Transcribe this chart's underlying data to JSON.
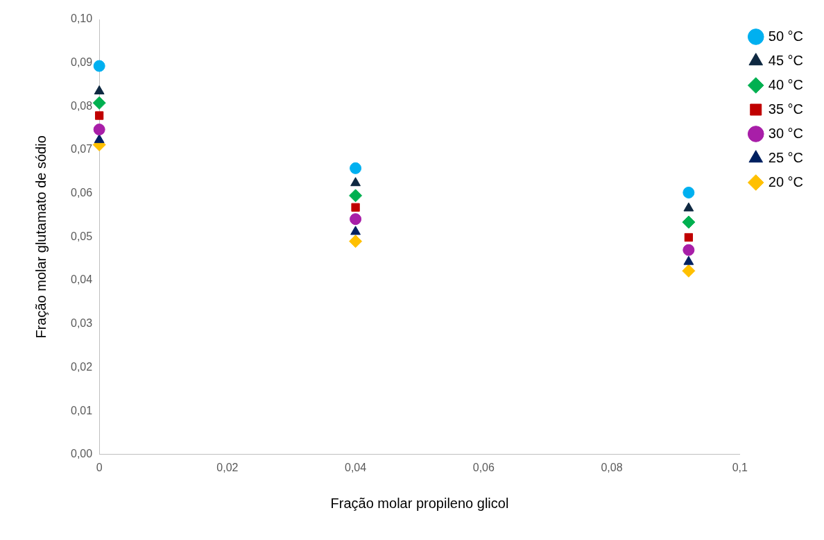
{
  "chart_data": {
    "type": "scatter",
    "xlabel": "Fração molar propileno glicol",
    "ylabel": "Fração molar glutamato de sódio",
    "x": [
      0,
      0.04,
      0.092
    ],
    "series": [
      {
        "name": "50 °C",
        "color": "#00b0f0",
        "marker": "circle",
        "values": [
          0.0893,
          0.0658,
          0.0602
        ]
      },
      {
        "name": "45 °C",
        "color": "#0e2841",
        "marker": "triangle",
        "values": [
          0.0835,
          0.0624,
          0.0566
        ]
      },
      {
        "name": "40 °C",
        "color": "#00b050",
        "marker": "diamond",
        "values": [
          0.0808,
          0.0595,
          0.0534
        ]
      },
      {
        "name": "35 °C",
        "color": "#c00000",
        "marker": "square",
        "values": [
          0.0779,
          0.0568,
          0.0499
        ]
      },
      {
        "name": "30 °C",
        "color": "#a81ea8",
        "marker": "circle",
        "values": [
          0.0747,
          0.0541,
          0.047
        ]
      },
      {
        "name": "25 °C",
        "color": "#002060",
        "marker": "triangle",
        "values": [
          0.0723,
          0.0512,
          0.0443
        ]
      },
      {
        "name": "20 °C",
        "color": "#ffc000",
        "marker": "diamond",
        "values": [
          0.0712,
          0.049,
          0.0422
        ]
      }
    ],
    "xlim": [
      0,
      0.1
    ],
    "xticks": [
      0,
      {
        "value": 0.02,
        "label": "0,02"
      },
      {
        "value": 0.04,
        "label": "0,04"
      },
      {
        "value": 0.06,
        "label": "0,06"
      },
      {
        "value": 0.08,
        "label": "0,08"
      },
      {
        "value": 0.1,
        "label": "0,1"
      }
    ],
    "ylim": [
      0,
      0.1
    ],
    "yticks": [
      {
        "value": 0,
        "label": "0,00"
      },
      {
        "value": 0.01,
        "label": "0,01"
      },
      {
        "value": 0.02,
        "label": "0,02"
      },
      {
        "value": 0.03,
        "label": "0,03"
      },
      {
        "value": 0.04,
        "label": "0,04"
      },
      {
        "value": 0.05,
        "label": "0,05"
      },
      {
        "value": 0.06,
        "label": "0,06"
      },
      {
        "value": 0.07,
        "label": "0,07"
      },
      {
        "value": 0.08,
        "label": "0,08"
      },
      {
        "value": 0.09,
        "label": "0,09"
      },
      {
        "value": 0.1,
        "label": "0,10"
      }
    ],
    "grid": false,
    "legend": "top right"
  }
}
